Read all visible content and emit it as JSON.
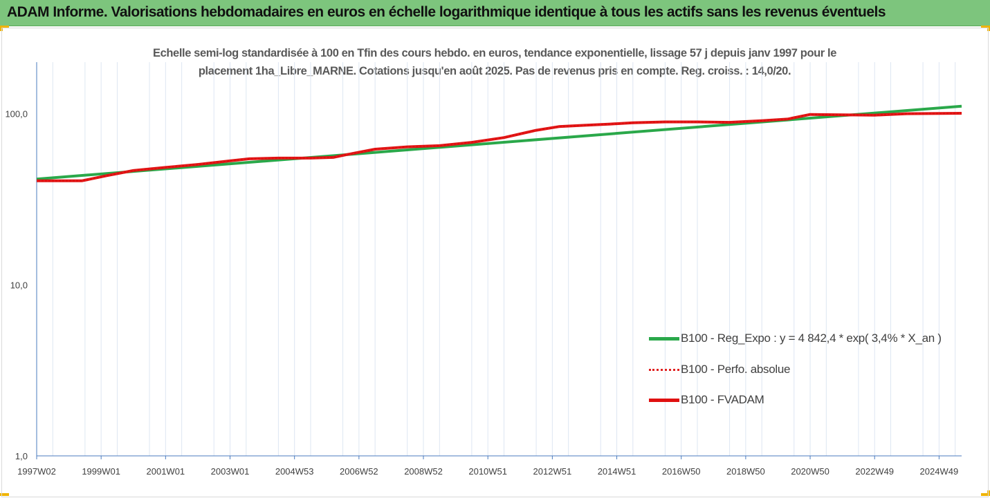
{
  "header": {
    "title": "ADAM Informe. Valorisations hebdomadaires en euros en échelle logarithmique identique à tous les actifs sans les revenus éventuels"
  },
  "chart_data": {
    "type": "line",
    "subtitle_line1": "Echelle semi-log standardisée à 100 en Tfin des cours hebdo. en euros, tendance exponentielle, lissage 57 j depuis janv 1997 pour le",
    "subtitle_line2": "placement 1ha_Libre_MARNE. Cotations jusqu'en août 2025. Pas de revenus pris en compte. Reg. croiss. : 14,0/20.",
    "y_scale": "log",
    "ylim": [
      1,
      200
    ],
    "y_ticks": [
      1,
      10,
      100
    ],
    "y_tick_labels": [
      "1,0",
      "10,0",
      "100,0"
    ],
    "xlim": [
      1997.0,
      2025.7
    ],
    "x_ticks": [
      1997.0,
      1999.0,
      2001.0,
      2003.0,
      2005.0,
      2007.0,
      2009.0,
      2011.0,
      2013.0,
      2015.0,
      2017.0,
      2019.0,
      2021.0,
      2023.0,
      2025.0
    ],
    "x_tick_labels": [
      "1997W02",
      "1999W01",
      "2001W01",
      "2003W01",
      "2004W53",
      "2006W52",
      "2008W52",
      "2010W51",
      "2012W51",
      "2014W51",
      "2016W50",
      "2018W50",
      "2020W50",
      "2022W49",
      "2024W49"
    ],
    "grid": "vertical",
    "legend_position": "right",
    "colors": {
      "regression": "#2aa84a",
      "perf": "#e02020",
      "fvadam": "#e01010",
      "axis": "#4a7bbf",
      "grid": "#dde6f2",
      "header": "#7dc57d",
      "corner": "#f0b400"
    },
    "series": [
      {
        "name": "B100 - Reg_Expo : y = 4 842,4 * exp( 3,4% *  X_an )",
        "style": "solid-thick",
        "color": "#2aa84a",
        "x": [
          1997.0,
          2025.7
        ],
        "y": [
          41.5,
          110.5
        ]
      },
      {
        "name": "B100 - Perfo. absolue",
        "style": "dotted",
        "color": "#e02020",
        "x": [
          1997.0,
          1998.4,
          1999.2,
          2000.0,
          2001.0,
          2002.0,
          2003.0,
          2003.6,
          2004.5,
          2005.5,
          2006.2,
          2006.6,
          2007.5,
          2008.5,
          2009.5,
          2010.5,
          2011.5,
          2012.5,
          2013.2,
          2014.0,
          2014.8,
          2015.5,
          2016.5,
          2017.5,
          2018.5,
          2019.5,
          2020.3,
          2021.0,
          2022.0,
          2023.0,
          2024.0,
          2025.7
        ],
        "y": [
          40.5,
          40.5,
          43.5,
          46.5,
          48.5,
          50.5,
          53.0,
          54.5,
          55.0,
          55.0,
          55.5,
          57.5,
          62.0,
          64.0,
          65.0,
          68.0,
          72.5,
          80.0,
          84.0,
          85.5,
          87.0,
          88.5,
          89.5,
          89.5,
          89.0,
          91.0,
          93.0,
          99.0,
          98.5,
          98.0,
          100.0,
          100.5
        ]
      },
      {
        "name": "B100 - FVADAM",
        "style": "solid-thick",
        "color": "#e01010",
        "x": [
          1997.0,
          1998.4,
          1999.2,
          2000.0,
          2001.0,
          2002.0,
          2003.0,
          2003.6,
          2004.5,
          2005.5,
          2006.2,
          2006.6,
          2007.5,
          2008.5,
          2009.5,
          2010.5,
          2011.5,
          2012.5,
          2013.2,
          2014.0,
          2014.8,
          2015.5,
          2016.5,
          2017.5,
          2018.5,
          2019.5,
          2020.3,
          2021.0,
          2022.0,
          2023.0,
          2024.0,
          2025.7
        ],
        "y": [
          40.5,
          40.5,
          43.5,
          46.5,
          48.5,
          50.5,
          53.0,
          54.5,
          55.0,
          55.0,
          55.5,
          57.5,
          62.0,
          64.0,
          65.0,
          68.0,
          72.5,
          80.0,
          84.0,
          85.5,
          87.0,
          88.5,
          89.5,
          89.5,
          89.0,
          91.0,
          93.0,
          99.0,
          98.5,
          98.0,
          100.0,
          100.5
        ]
      }
    ]
  }
}
